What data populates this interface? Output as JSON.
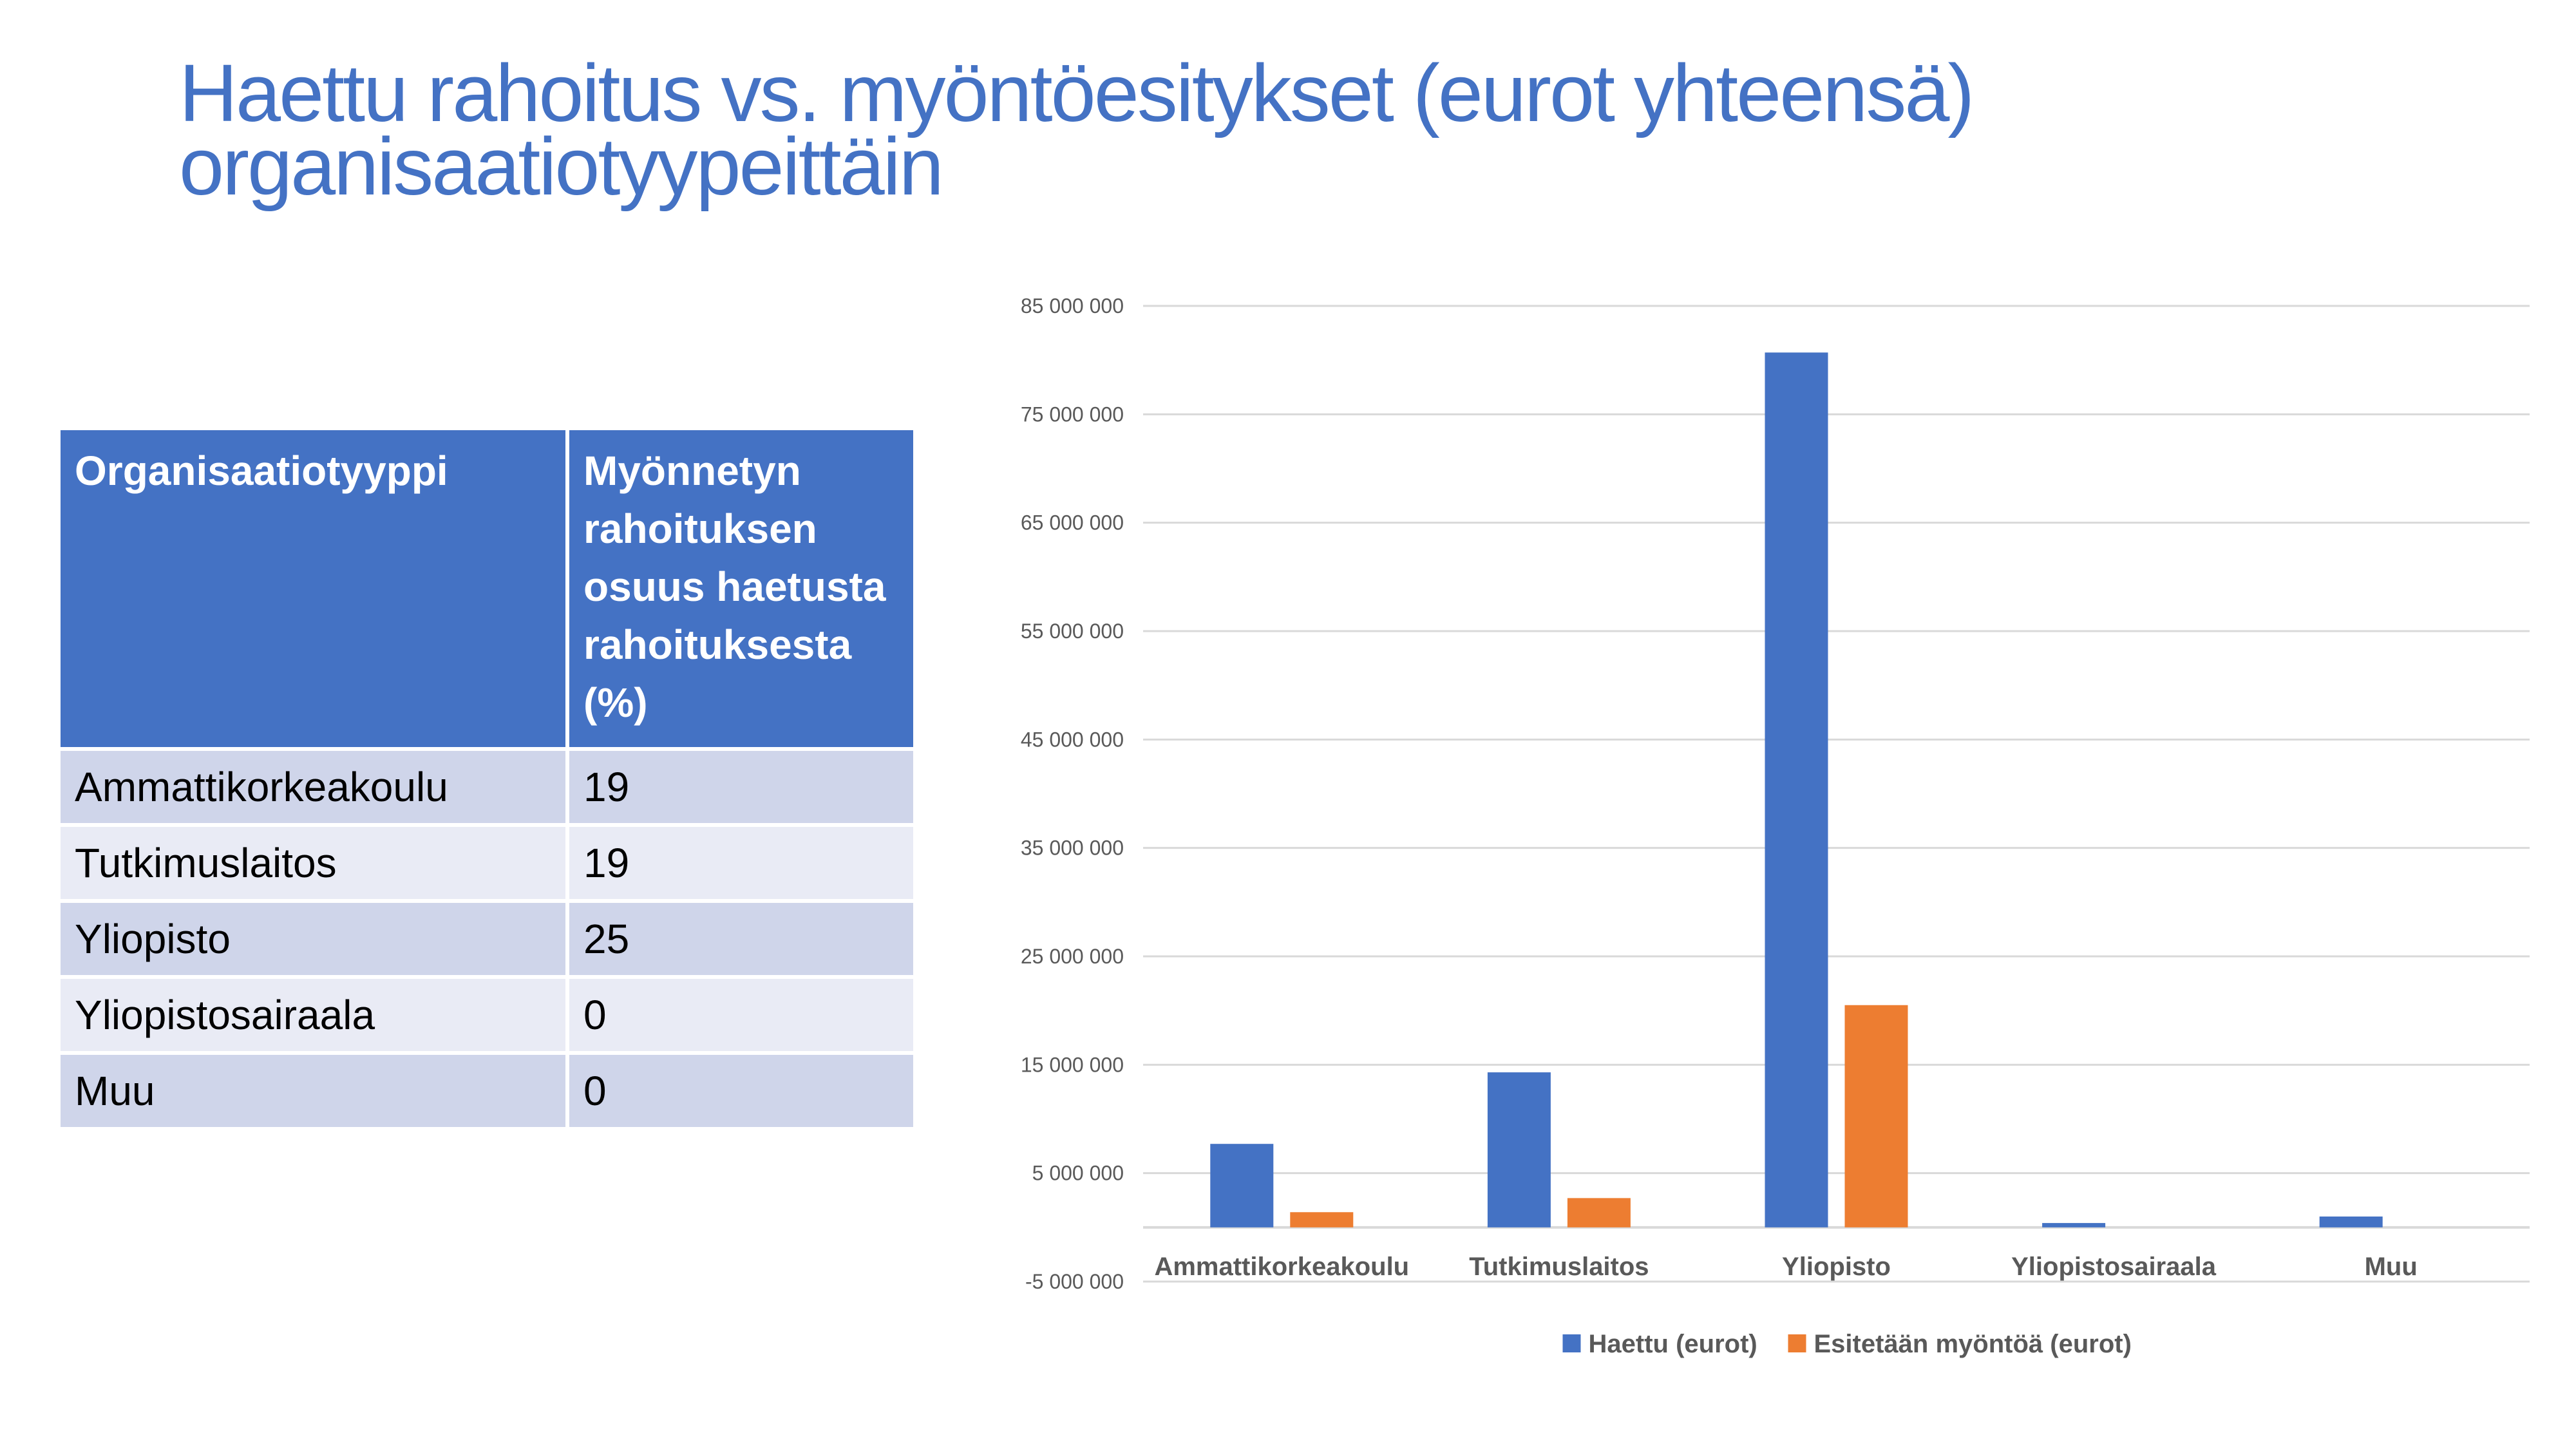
{
  "title": {
    "line1": "Haettu rahoitus vs. myöntöesitykset (eurot yhteensä)",
    "line2": "organisaatiotyypeittäin"
  },
  "table": {
    "headers": [
      "Organisaatiotyyppi",
      "Myönnetyn rahoituksen osuus haetusta rahoituksesta (%)"
    ],
    "rows": [
      [
        "Ammattikorkeakoulu",
        "19"
      ],
      [
        "Tutkimuslaitos",
        "19"
      ],
      [
        "Yliopisto",
        "25"
      ],
      [
        "Yliopistosairaala",
        "0"
      ],
      [
        "Muu",
        "0"
      ]
    ]
  },
  "chart_data": {
    "type": "bar",
    "categories": [
      "Ammattikorkeakoulu",
      "Tutkimuslaitos",
      "Yliopisto",
      "Yliopistosairaala",
      "Muu"
    ],
    "series": [
      {
        "name": "Haettu (eurot)",
        "color": "#4472c4",
        "values": [
          7700000,
          14300000,
          80700000,
          400000,
          1000000
        ]
      },
      {
        "name": "Esitetään myöntöä (eurot)",
        "color": "#ed7d31",
        "values": [
          1400000,
          2700000,
          20500000,
          0,
          0
        ]
      }
    ],
    "ylim": [
      -5000000,
      85000000
    ],
    "yticks": [
      -5000000,
      5000000,
      15000000,
      25000000,
      35000000,
      45000000,
      55000000,
      65000000,
      75000000,
      85000000
    ],
    "ytick_labels": [
      "-5 000 000",
      "5 000 000",
      "15 000 000",
      "25 000 000",
      "35 000 000",
      "45 000 000",
      "55 000 000",
      "65 000 000",
      "75 000 000",
      "85 000 000"
    ],
    "grid": true,
    "legend_position": "bottom",
    "title": "",
    "xlabel": "",
    "ylabel": ""
  }
}
